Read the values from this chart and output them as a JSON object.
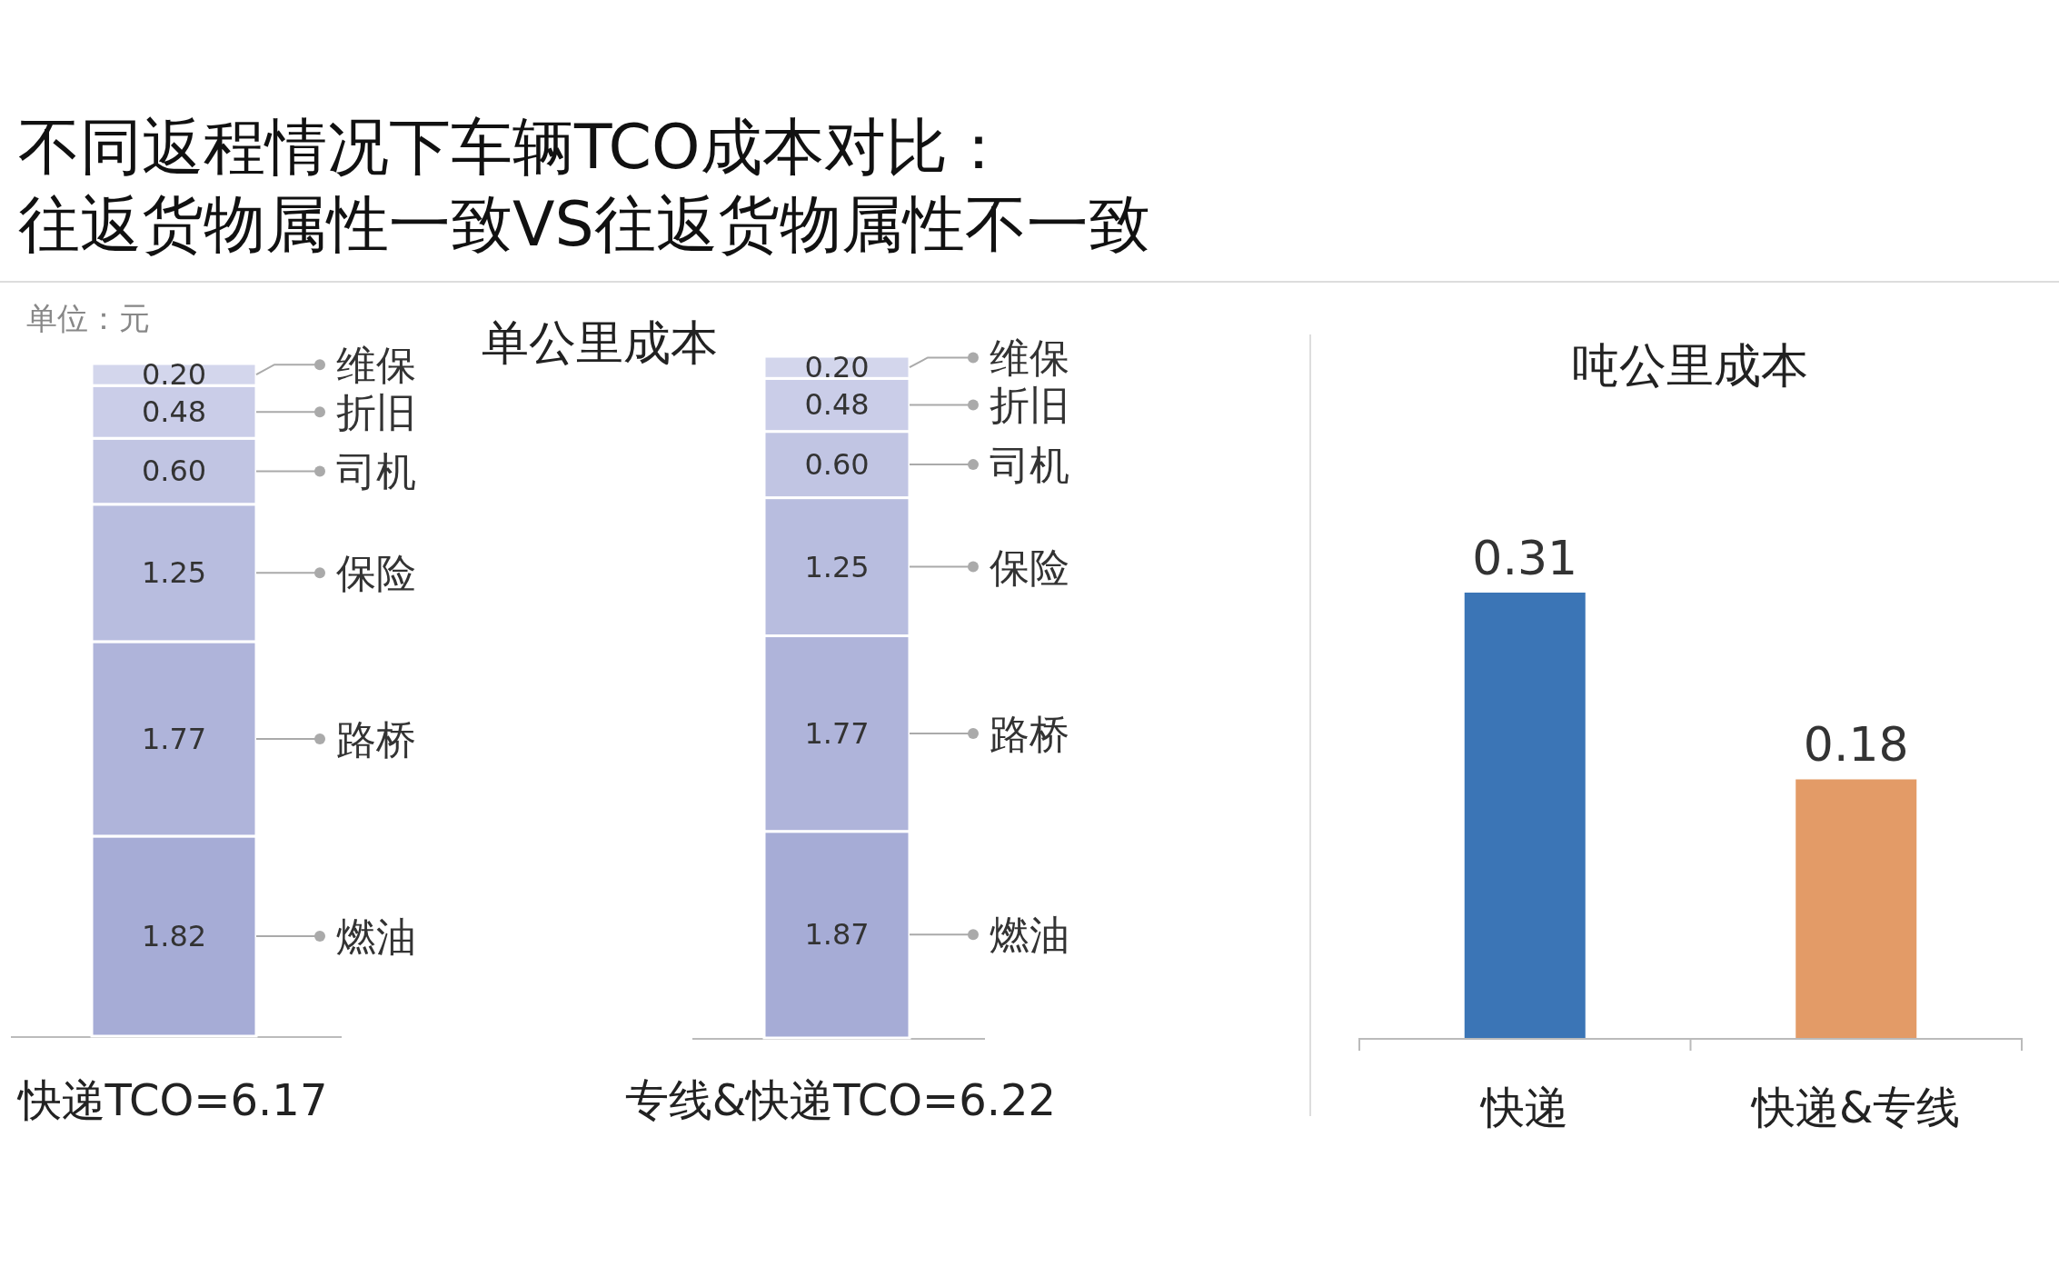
{
  "chart_data": [
    {
      "type": "bar",
      "stacked": true,
      "title": "不同返程情况下车辆TCO成本对比：往返货物属性一致VS往返货物属性不一致",
      "annotations": [
        "单位：元",
        "单公里成本"
      ],
      "categories": [
        "快递TCO=6.17"
      ],
      "series": [
        {
          "name": "燃油",
          "color": "#a6acd6",
          "values": [
            1.82
          ],
          "value_labels": [
            "1.82"
          ]
        },
        {
          "name": "路桥",
          "color": "#afb4da",
          "values": [
            1.77
          ],
          "value_labels": [
            "1.77"
          ]
        },
        {
          "name": "保险",
          "color": "#b8bddf",
          "values": [
            1.25
          ],
          "value_labels": [
            "1.25"
          ]
        },
        {
          "name": "司机",
          "color": "#c1c5e3",
          "values": [
            0.6
          ],
          "value_labels": [
            "0.60"
          ]
        },
        {
          "name": "折旧",
          "color": "#cacde8",
          "values": [
            0.48
          ],
          "value_labels": [
            "0.48"
          ]
        },
        {
          "name": "维保",
          "color": "#d3d6ec",
          "values": [
            0.2
          ],
          "value_labels": [
            "0.20"
          ]
        }
      ]
    },
    {
      "type": "bar",
      "stacked": true,
      "categories": [
        "专线&快递TCO=6.22"
      ],
      "series": [
        {
          "name": "燃油",
          "color": "#a6acd6",
          "values": [
            1.87
          ],
          "value_labels": [
            "1.87"
          ]
        },
        {
          "name": "路桥",
          "color": "#afb4da",
          "values": [
            1.77
          ],
          "value_labels": [
            "1.77"
          ]
        },
        {
          "name": "保险",
          "color": "#b8bddf",
          "values": [
            1.25
          ],
          "value_labels": [
            "1.25"
          ]
        },
        {
          "name": "司机",
          "color": "#c1c5e3",
          "values": [
            0.6
          ],
          "value_labels": [
            "0.60"
          ]
        },
        {
          "name": "折旧",
          "color": "#cacde8",
          "values": [
            0.48
          ],
          "value_labels": [
            "0.48"
          ]
        },
        {
          "name": "维保",
          "color": "#d3d6ec",
          "values": [
            0.2
          ],
          "value_labels": [
            "0.20"
          ]
        }
      ]
    },
    {
      "type": "bar",
      "title": "吨公里成本",
      "categories": [
        "快递",
        "快递&专线"
      ],
      "values": [
        0.31,
        0.18
      ],
      "colors": [
        "#3b75b6",
        "#e39b67"
      ],
      "value_labels": [
        "0.31",
        "0.18"
      ]
    }
  ]
}
